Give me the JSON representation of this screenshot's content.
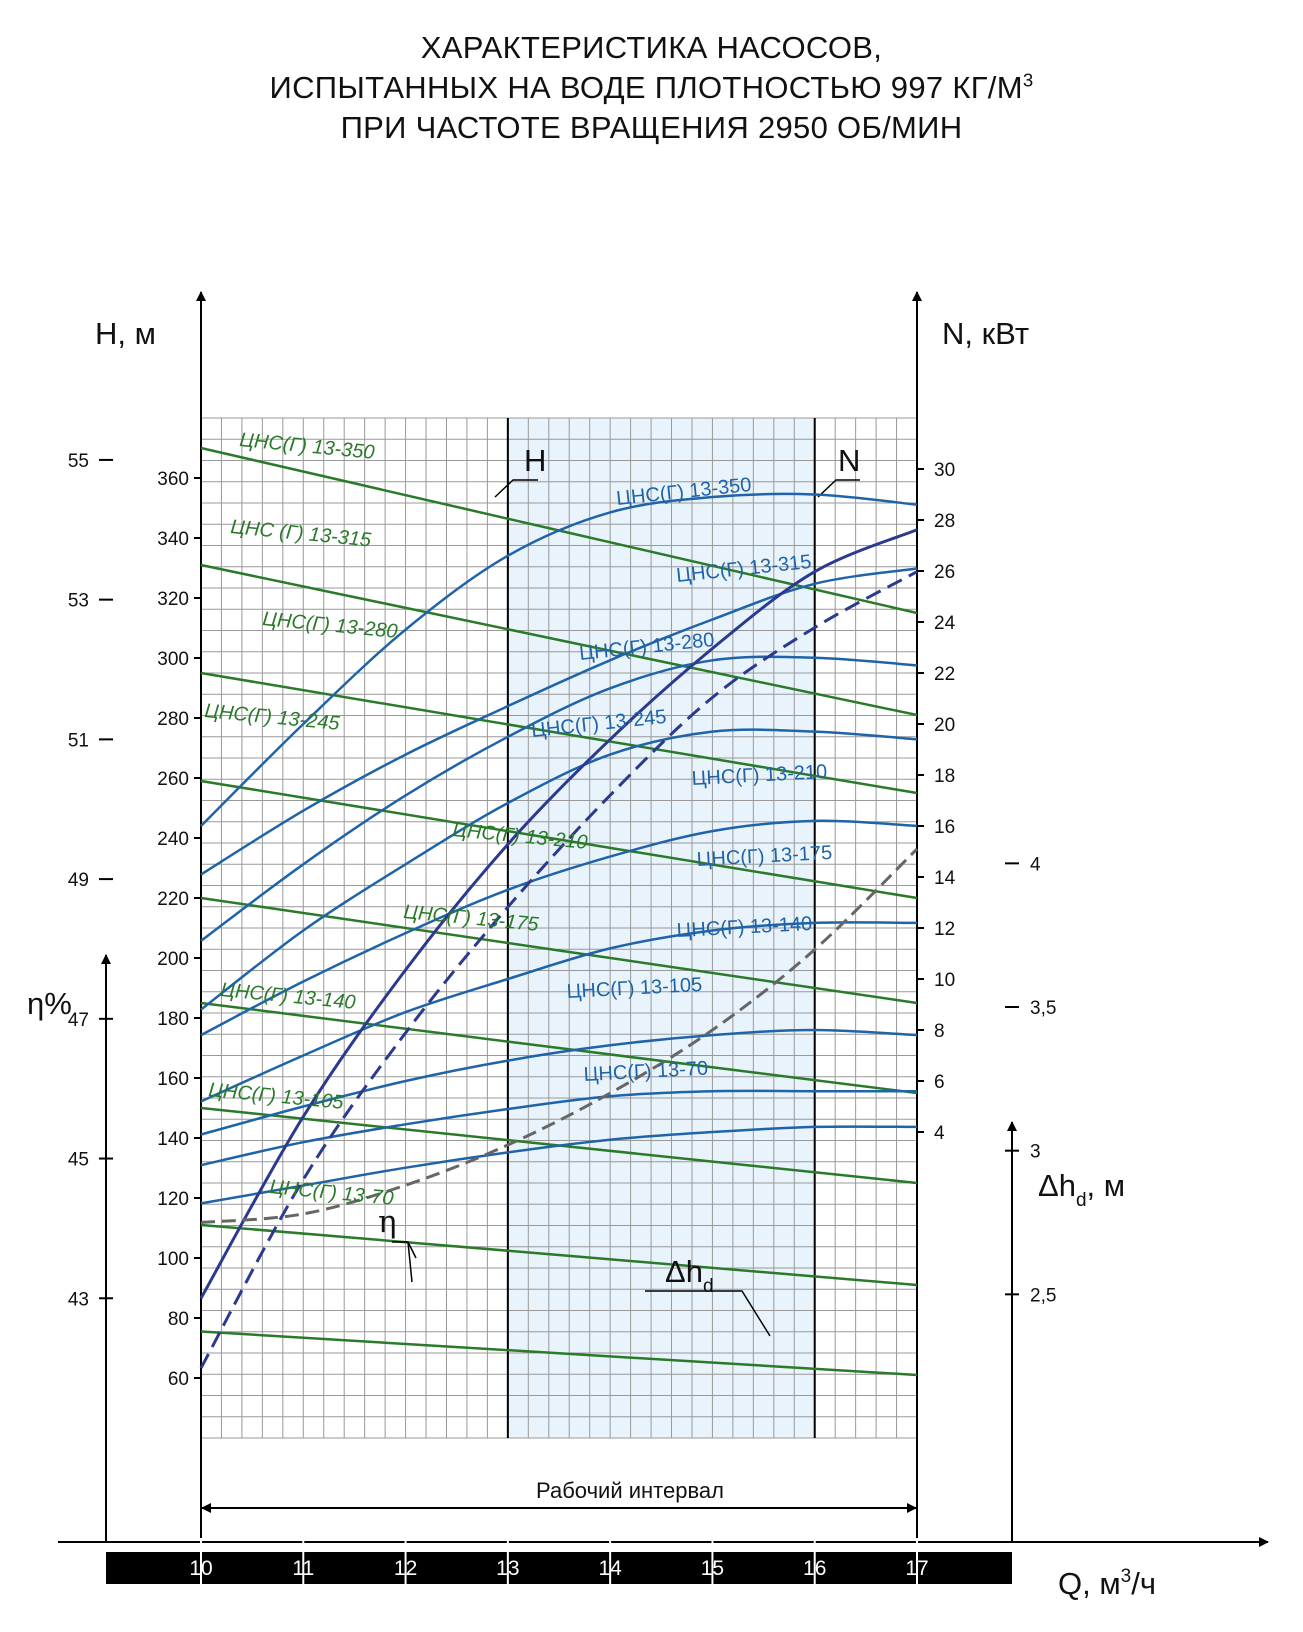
{
  "title": {
    "line1": "ХАРАКТЕРИСТИКА НАСОСОВ,",
    "line2": "ИСПЫТАННЫХ НА ВОДЕ ПЛОТНОСТЬЮ 997 КГ/М",
    "line2_sup": "3",
    "line3": "ПРИ ЧАСТОТЕ ВРАЩЕНИЯ 2950 ОБ/МИН"
  },
  "colors": {
    "head_curve": "#2a7a2a",
    "power_curve": "#1f63a8",
    "efficiency_curve": "#2b3a8f",
    "npsh_curve": "#666666",
    "working_band": "#e8f3fb",
    "grid": "#999999",
    "q_bar": "#000000"
  },
  "chart_data": {
    "type": "line",
    "x_axis": {
      "label": "Q, м",
      "label_sup": "3",
      "label_tail": "/ч",
      "range": [
        10,
        17
      ],
      "ticks": [
        "10",
        "11",
        "12",
        "13",
        "14",
        "15",
        "16",
        "17"
      ]
    },
    "y_head": {
      "label": "H, м",
      "range": [
        40,
        380
      ],
      "ticks": [
        "60",
        "80",
        "100",
        "120",
        "140",
        "160",
        "180",
        "200",
        "220",
        "240",
        "260",
        "280",
        "300",
        "320",
        "340",
        "360"
      ]
    },
    "y_power": {
      "label": "N, кВт",
      "range": [
        -8,
        32
      ],
      "ticks": [
        "4",
        "6",
        "8",
        "10",
        "12",
        "14",
        "16",
        "18",
        "20",
        "22",
        "24",
        "26",
        "28",
        "30"
      ]
    },
    "y_eff": {
      "label": "η%",
      "range": [
        41.0,
        55.6
      ],
      "ticks": [
        "43",
        "45",
        "47",
        "49",
        "51",
        "53",
        "55"
      ]
    },
    "y_npsh": {
      "label": "Δh",
      "label_sub": "d",
      "label_tail": ", м",
      "range": [
        2.0,
        5.55
      ],
      "ticks": [
        "2,5",
        "3",
        "3,5",
        "4"
      ]
    },
    "working_interval": {
      "label": "Рабочий интервал",
      "q_from": 13,
      "q_to": 16,
      "marker_h": "H",
      "marker_n": "N"
    },
    "head_series": [
      {
        "name": "ЦНС(Г) 13-350",
        "x": [
          10,
          17
        ],
        "y": [
          370,
          315
        ]
      },
      {
        "name": "ЦНС (Г) 13-315",
        "x": [
          10,
          17
        ],
        "y": [
          331,
          281
        ]
      },
      {
        "name": "ЦНС(Г) 13-280",
        "x": [
          10,
          17
        ],
        "y": [
          295,
          255
        ]
      },
      {
        "name": "ЦНС(Г) 13-245",
        "x": [
          10,
          17
        ],
        "y": [
          259,
          220
        ]
      },
      {
        "name": "ЦНС(Г) 13-210",
        "x": [
          10,
          17
        ],
        "y": [
          220,
          185
        ]
      },
      {
        "name": "ЦНС(Г) 13-175",
        "x": [
          10,
          17
        ],
        "y": [
          185,
          155
        ]
      },
      {
        "name": "ЦНС(Г) 13-140",
        "x": [
          10,
          17
        ],
        "y": [
          150,
          125
        ]
      },
      {
        "name": "ЦНС(Г) 13-105",
        "x": [
          10,
          17
        ],
        "y": [
          111,
          91
        ]
      },
      {
        "name": "ЦНС(Г) 13-70",
        "x": [
          10,
          17
        ],
        "y": [
          75.5,
          61
        ]
      }
    ],
    "power_series": [
      {
        "name": "ЦНС(Г) 13-350",
        "x": [
          10,
          11,
          12,
          13,
          14,
          15,
          16,
          17
        ],
        "y": [
          16.0,
          20.0,
          23.7,
          26.6,
          28.3,
          28.9,
          29.0,
          28.6
        ]
      },
      {
        "name": "ЦНС(Г) 13-315",
        "x": [
          10,
          11,
          12,
          13,
          14,
          15,
          16,
          17
        ],
        "y": [
          14.1,
          16.6,
          18.8,
          20.7,
          22.5,
          24.1,
          25.5,
          26.1
        ]
      },
      {
        "name": "ЦНС(Г) 13-280",
        "x": [
          10,
          11,
          12,
          13,
          14,
          15,
          16,
          17
        ],
        "y": [
          11.5,
          14.5,
          17.2,
          19.5,
          21.4,
          22.5,
          22.6,
          22.3
        ]
      },
      {
        "name": "ЦНС(Г) 13-245",
        "x": [
          10,
          11,
          12,
          13,
          14,
          15,
          16,
          17
        ],
        "y": [
          8.8,
          11.9,
          14.5,
          16.9,
          18.8,
          19.7,
          19.7,
          19.4
        ]
      },
      {
        "name": "ЦНС(Г) 13-210",
        "x": [
          10,
          11,
          12,
          13,
          14,
          15,
          16,
          17
        ],
        "y": [
          7.8,
          9.9,
          11.8,
          13.5,
          14.8,
          15.8,
          16.2,
          16.0
        ]
      },
      {
        "name": "ЦНС(Г) 13-175",
        "x": [
          10,
          11,
          12,
          13,
          14,
          15,
          16,
          17
        ],
        "y": [
          5.2,
          7.0,
          8.7,
          10.0,
          11.2,
          11.9,
          12.2,
          12.2
        ]
      },
      {
        "name": "ЦНС(Г) 13-140",
        "x": [
          10,
          11,
          12,
          13,
          14,
          15,
          16,
          17
        ],
        "y": [
          3.9,
          5.0,
          6.0,
          6.8,
          7.4,
          7.8,
          8.0,
          7.8
        ]
      },
      {
        "name": "ЦНС(Г) 13-105",
        "x": [
          10,
          11,
          12,
          13,
          14,
          15,
          16,
          17
        ],
        "y": [
          2.7,
          3.6,
          4.3,
          4.9,
          5.4,
          5.6,
          5.6,
          5.6
        ]
      },
      {
        "name": "ЦНС(Г) 13-70",
        "x": [
          10,
          11,
          12,
          13,
          14,
          15,
          16,
          17
        ],
        "y": [
          1.2,
          1.9,
          2.6,
          3.2,
          3.7,
          4.0,
          4.2,
          4.2
        ]
      }
    ],
    "efficiency_series": [
      {
        "name": "η",
        "style": "solid",
        "x": [
          10,
          11,
          12,
          13,
          14,
          15,
          16,
          17
        ],
        "y": [
          43.0,
          45.6,
          47.7,
          49.5,
          51.0,
          52.3,
          53.4,
          54.0
        ]
      },
      {
        "name": "η",
        "style": "dashed",
        "x": [
          10,
          11,
          12,
          13,
          14,
          15,
          16,
          17
        ],
        "y": [
          42.0,
          44.7,
          46.8,
          48.6,
          50.2,
          51.6,
          52.6,
          53.4
        ]
      }
    ],
    "npsh_series": [
      {
        "name": "Δh",
        "x": [
          10,
          11,
          12,
          13,
          14,
          15,
          16,
          17
        ],
        "y": [
          2.75,
          2.78,
          2.88,
          3.02,
          3.2,
          3.42,
          3.7,
          4.05
        ]
      }
    ]
  }
}
